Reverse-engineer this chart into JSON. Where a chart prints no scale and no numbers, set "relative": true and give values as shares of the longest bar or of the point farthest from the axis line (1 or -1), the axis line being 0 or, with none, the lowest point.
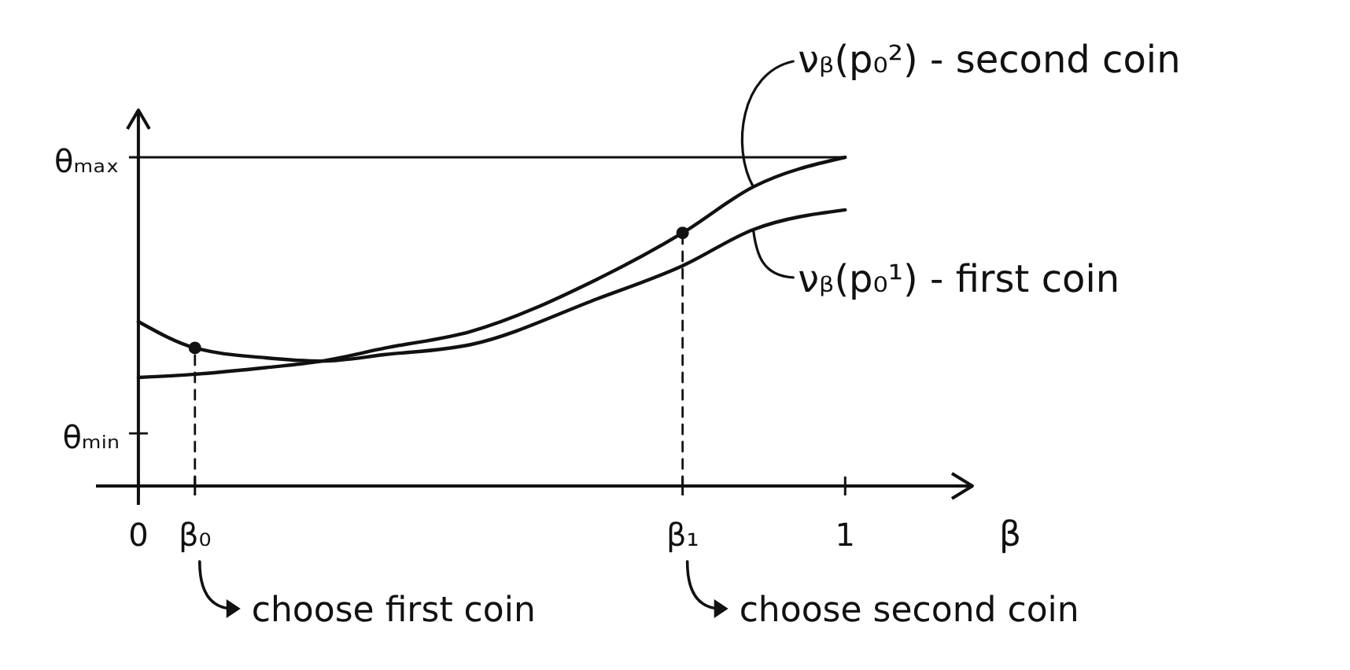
{
  "chart_data": {
    "type": "line",
    "relative": true,
    "xlabel": "β",
    "xlim": [
      -0.06,
      1.18
    ],
    "xticks": [
      0,
      {
        "value": 0.08,
        "label": "β₀"
      },
      {
        "value": 0.77,
        "label": "β₁"
      },
      1
    ],
    "series": [
      {
        "name": "νᵦ(p₀²) - second coin",
        "color": "#111111",
        "x": [
          0,
          0.08,
          0.18,
          0.26,
          0.35,
          0.47,
          0.65,
          0.77,
          0.87,
          1
        ],
        "values": [
          0.33,
          0.34,
          0.36,
          0.38,
          0.42,
          0.47,
          0.63,
          0.77,
          0.91,
          1
        ]
      },
      {
        "name": "νᵦ(p₀¹) - first coin",
        "color": "#111111",
        "x": [
          0,
          0.08,
          0.18,
          0.26,
          0.35,
          0.47,
          0.65,
          0.77,
          0.87,
          1
        ],
        "values": [
          0.5,
          0.42,
          0.39,
          0.38,
          0.4,
          0.43,
          0.57,
          0.67,
          0.78,
          0.84
        ]
      },
      {
        "type": "line",
        "line_style": "dashed",
        "color": "#111111",
        "x": [
          0.08,
          0.08
        ],
        "values": [
          0,
          0.42
        ]
      },
      {
        "type": "line",
        "line_style": "dashed",
        "color": "#111111",
        "x": [
          0.77,
          0.77
        ],
        "values": [
          0,
          0.77
        ]
      },
      {
        "type": "scatter",
        "marker": "circle",
        "color": "#111111",
        "x": [
          0.08,
          0.77
        ],
        "values": [
          0.42,
          0.77
        ]
      }
    ],
    "ref_lines": [
      {
        "axis": "y",
        "value": 1,
        "label": "θₘₐₓ"
      },
      {
        "axis": "y",
        "value": 0.16,
        "label": "θₘᵢₙ"
      }
    ],
    "annotations": [
      "choose first coin",
      "choose second coin"
    ]
  }
}
